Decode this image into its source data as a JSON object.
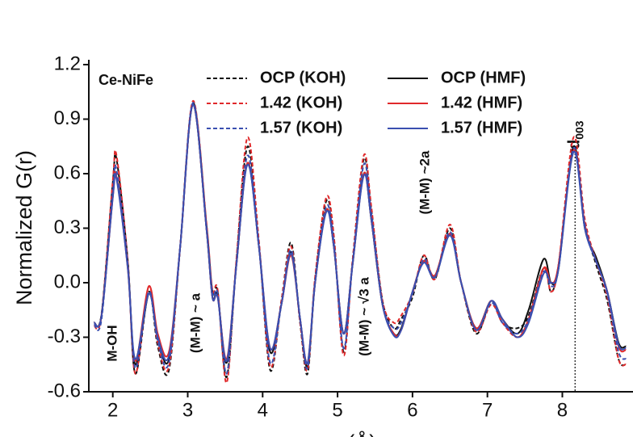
{
  "chart_data": {
    "type": "line",
    "ylabel": "Normalized G(r)",
    "xlabel": "r (Å)",
    "xlim": [
      1.68,
      8.9
    ],
    "ylim": [
      -0.6,
      1.2
    ],
    "xticks": [
      2,
      3,
      4,
      5,
      6,
      7,
      8
    ],
    "yticks": [
      -0.6,
      -0.3,
      {
        "value": 0,
        "label": "0.0"
      },
      0.3,
      0.6,
      0.9,
      1.2
    ],
    "annotations": [
      "Ce-NiFe",
      "M-OH",
      "(M-M) ~ a",
      "(M-M) ~ √3 a",
      "(M-M) ~2a"
    ],
    "reference_line": {
      "x": 8.17,
      "label": "d",
      "subscript": "003"
    },
    "x": [
      1.75,
      1.85,
      2.0,
      2.05,
      2.2,
      2.3,
      2.48,
      2.6,
      2.75,
      2.9,
      3.07,
      3.25,
      3.33,
      3.4,
      3.52,
      3.65,
      3.8,
      3.95,
      4.1,
      4.25,
      4.38,
      4.5,
      4.6,
      4.7,
      4.85,
      4.95,
      5.08,
      5.2,
      5.35,
      5.45,
      5.6,
      5.75,
      5.85,
      6.0,
      6.15,
      6.3,
      6.5,
      6.65,
      6.85,
      7.05,
      7.2,
      7.4,
      7.55,
      7.75,
      7.85,
      7.95,
      8.15,
      8.3,
      8.45,
      8.6,
      8.75,
      8.85
    ],
    "series": [
      {
        "name": "OCP (KOH)",
        "color": "#111111",
        "dashed": true,
        "values": [
          -0.22,
          -0.17,
          0.55,
          0.68,
          0.12,
          -0.5,
          -0.05,
          -0.35,
          -0.48,
          0.2,
          0.99,
          0.32,
          -0.05,
          -0.05,
          -0.52,
          0.12,
          0.75,
          0.22,
          -0.48,
          -0.1,
          0.22,
          -0.22,
          -0.5,
          0.02,
          0.45,
          0.25,
          -0.38,
          0.12,
          0.68,
          0.4,
          -0.1,
          -0.25,
          -0.2,
          -0.08,
          0.15,
          0.02,
          0.3,
          0.0,
          -0.28,
          -0.1,
          -0.22,
          -0.25,
          -0.18,
          0.08,
          -0.05,
          0.1,
          0.72,
          0.32,
          0.1,
          -0.1,
          -0.42,
          -0.45
        ]
      },
      {
        "name": "OCP (HMF)",
        "color": "#111111",
        "dashed": false,
        "values": [
          -0.22,
          -0.18,
          0.48,
          0.58,
          0.1,
          -0.45,
          -0.06,
          -0.3,
          -0.42,
          0.2,
          0.98,
          0.3,
          -0.08,
          -0.07,
          -0.44,
          0.1,
          0.66,
          0.2,
          -0.38,
          -0.12,
          0.17,
          -0.2,
          -0.46,
          0.0,
          0.4,
          0.2,
          -0.28,
          0.1,
          0.6,
          0.35,
          -0.12,
          -0.28,
          -0.25,
          -0.05,
          0.12,
          0.04,
          0.27,
          0.0,
          -0.25,
          -0.1,
          -0.2,
          -0.28,
          -0.15,
          0.13,
          0.0,
          0.08,
          0.75,
          0.3,
          0.14,
          -0.05,
          -0.33,
          -0.35
        ]
      },
      {
        "name": "1.42 (KOH)",
        "color": "#e0292b",
        "dashed": true,
        "values": [
          -0.24,
          -0.18,
          0.56,
          0.7,
          0.12,
          -0.5,
          -0.02,
          -0.33,
          -0.46,
          0.2,
          1.0,
          0.33,
          -0.04,
          -0.04,
          -0.55,
          0.13,
          0.8,
          0.23,
          -0.46,
          -0.1,
          0.2,
          -0.22,
          -0.48,
          0.03,
          0.47,
          0.26,
          -0.4,
          0.12,
          0.7,
          0.42,
          -0.1,
          -0.22,
          -0.18,
          -0.06,
          0.15,
          0.02,
          0.32,
          0.0,
          -0.27,
          -0.12,
          -0.22,
          -0.3,
          -0.2,
          0.08,
          -0.05,
          0.1,
          0.8,
          0.35,
          0.12,
          -0.08,
          -0.42,
          -0.45
        ]
      },
      {
        "name": "1.42 (HMF)",
        "color": "#e0292b",
        "dashed": false,
        "values": [
          -0.22,
          -0.18,
          0.47,
          0.58,
          0.08,
          -0.43,
          -0.02,
          -0.28,
          -0.38,
          0.2,
          0.98,
          0.3,
          -0.08,
          -0.08,
          -0.42,
          0.1,
          0.66,
          0.2,
          -0.36,
          -0.12,
          0.15,
          -0.2,
          -0.44,
          0.0,
          0.4,
          0.2,
          -0.28,
          0.1,
          0.6,
          0.35,
          -0.12,
          -0.28,
          -0.26,
          -0.05,
          0.12,
          0.04,
          0.27,
          0.0,
          -0.25,
          -0.1,
          -0.2,
          -0.3,
          -0.2,
          0.08,
          0.0,
          0.1,
          0.73,
          0.32,
          0.12,
          -0.05,
          -0.35,
          -0.37
        ]
      },
      {
        "name": "1.57 (KOH)",
        "color": "#3a4fb0",
        "dashed": true,
        "values": [
          -0.23,
          -0.2,
          0.5,
          0.62,
          0.1,
          -0.47,
          -0.05,
          -0.32,
          -0.44,
          0.2,
          0.99,
          0.3,
          -0.06,
          -0.06,
          -0.5,
          0.1,
          0.7,
          0.2,
          -0.44,
          -0.12,
          0.18,
          -0.2,
          -0.47,
          0.0,
          0.42,
          0.22,
          -0.36,
          0.1,
          0.65,
          0.38,
          -0.12,
          -0.25,
          -0.22,
          -0.06,
          0.13,
          0.03,
          0.28,
          0.0,
          -0.26,
          -0.11,
          -0.22,
          -0.28,
          -0.2,
          0.06,
          -0.02,
          0.08,
          0.74,
          0.32,
          0.12,
          -0.06,
          -0.38,
          -0.42
        ]
      },
      {
        "name": "1.57 (HMF)",
        "color": "#3a4fb0",
        "dashed": false,
        "values": [
          -0.22,
          -0.18,
          0.47,
          0.57,
          0.08,
          -0.42,
          -0.06,
          -0.3,
          -0.4,
          0.2,
          0.98,
          0.3,
          -0.08,
          -0.08,
          -0.43,
          0.1,
          0.65,
          0.2,
          -0.36,
          -0.12,
          0.16,
          -0.2,
          -0.44,
          0.0,
          0.39,
          0.2,
          -0.28,
          0.1,
          0.59,
          0.35,
          -0.12,
          -0.29,
          -0.26,
          -0.05,
          0.11,
          0.03,
          0.26,
          0.0,
          -0.26,
          -0.1,
          -0.2,
          -0.3,
          -0.22,
          0.05,
          0.0,
          0.08,
          0.72,
          0.3,
          0.12,
          -0.05,
          -0.34,
          -0.36
        ]
      }
    ]
  }
}
